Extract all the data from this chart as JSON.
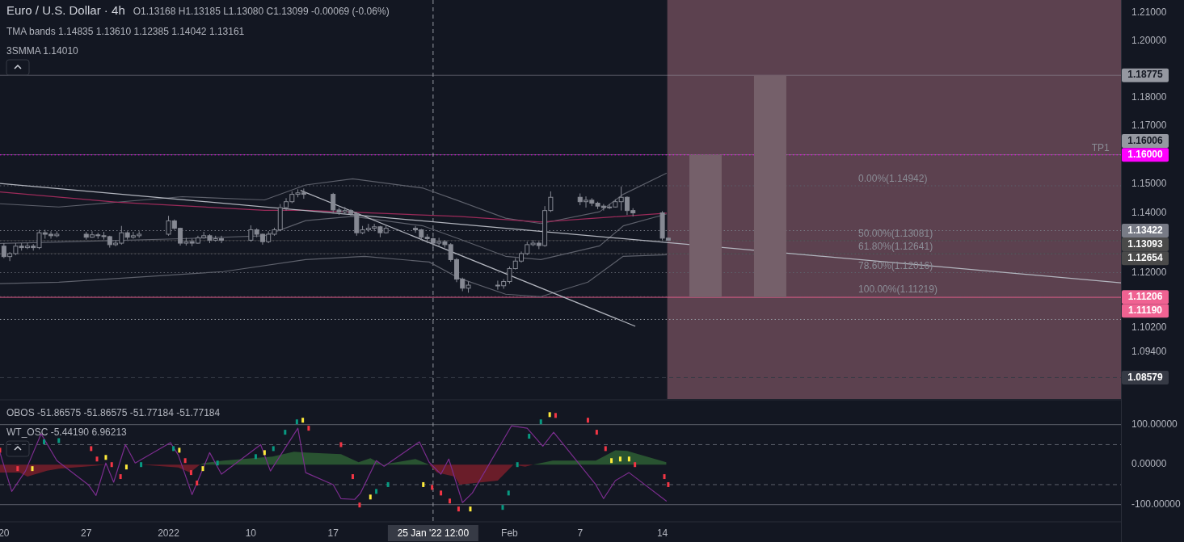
{
  "chart_data": [
    {
      "type": "candlestick",
      "title": "Euro / U.S. Dollar · 4h",
      "subtitle": "O1.13168 H1.13185 L1.13080 C1.13099 -0.00069 (-0.06%)",
      "color": "#868993",
      "log": true,
      "x": [
        "2021-12-20T00:00",
        "2021-12-20T12:00",
        "2021-12-21T00:00",
        "2021-12-21T12:00",
        "2021-12-22T00:00",
        "2021-12-22T12:00",
        "2021-12-23T00:00",
        "2021-12-23T12:00",
        "2021-12-24T00:00",
        "2021-12-24T12:00",
        "2021-12-27T00:00",
        "2021-12-27T12:00",
        "2021-12-28T00:00",
        "2021-12-28T12:00",
        "2021-12-29T00:00",
        "2021-12-29T12:00",
        "2021-12-30T00:00",
        "2021-12-30T12:00",
        "2021-12-31T00:00",
        "2021-12-31T12:00",
        "2022-01-03T00:00",
        "2022-01-03T12:00",
        "2022-01-04T00:00",
        "2022-01-04T12:00",
        "2022-01-05T00:00",
        "2022-01-05T12:00",
        "2022-01-06T00:00",
        "2022-01-06T12:00",
        "2022-01-07T00:00",
        "2022-01-07T12:00",
        "2022-01-10T00:00",
        "2022-01-10T12:00",
        "2022-01-11T00:00",
        "2022-01-11T12:00",
        "2022-01-12T00:00",
        "2022-01-12T12:00",
        "2022-01-13T00:00",
        "2022-01-13T12:00",
        "2022-01-14T00:00",
        "2022-01-14T12:00",
        "2022-01-17T00:00",
        "2022-01-17T12:00",
        "2022-01-18T00:00",
        "2022-01-18T12:00",
        "2022-01-19T00:00",
        "2022-01-19T12:00",
        "2022-01-20T00:00",
        "2022-01-20T12:00",
        "2022-01-21T00:00",
        "2022-01-21T12:00",
        "2022-01-24T00:00",
        "2022-01-24T12:00",
        "2022-01-25T00:00",
        "2022-01-25T12:00",
        "2022-01-26T00:00",
        "2022-01-26T12:00",
        "2022-01-27T00:00",
        "2022-01-27T12:00",
        "2022-01-28T00:00",
        "2022-01-28T12:00",
        "2022-01-31T00:00",
        "2022-01-31T12:00",
        "2022-02-01T00:00",
        "2022-02-01T12:00",
        "2022-02-02T00:00",
        "2022-02-02T12:00",
        "2022-02-03T00:00",
        "2022-02-03T12:00",
        "2022-02-04T00:00",
        "2022-02-04T12:00",
        "2022-02-07T00:00",
        "2022-02-07T12:00",
        "2022-02-08T00:00",
        "2022-02-08T12:00",
        "2022-02-09T00:00",
        "2022-02-09T12:00",
        "2022-02-10T00:00",
        "2022-02-10T12:00",
        "2022-02-11T00:00",
        "2022-02-11T12:00",
        "2022-02-14T00:00",
        "2022-02-14T12:00"
      ],
      "ohlc": [
        [
          1.129,
          1.13,
          1.125,
          1.1255
        ],
        [
          1.1255,
          1.127,
          1.124,
          1.1265
        ],
        [
          1.1265,
          1.13,
          1.126,
          1.129
        ],
        [
          1.129,
          1.13,
          1.1275,
          1.1285
        ],
        [
          1.1285,
          1.13,
          1.128,
          1.129
        ],
        [
          1.129,
          1.1297,
          1.1275,
          1.1285
        ],
        [
          1.1285,
          1.1345,
          1.128,
          1.1335
        ],
        [
          1.1335,
          1.1345,
          1.1315,
          1.133
        ],
        [
          1.133,
          1.134,
          1.1315,
          1.1325
        ],
        [
          1.1325,
          1.134,
          1.132,
          1.133
        ],
        [
          1.133,
          1.1338,
          1.1312,
          1.132
        ],
        [
          1.132,
          1.134,
          1.1318,
          1.1328
        ],
        [
          1.1328,
          1.1335,
          1.1315,
          1.1325
        ],
        [
          1.1325,
          1.1338,
          1.1312,
          1.1322
        ],
        [
          1.1322,
          1.1325,
          1.1285,
          1.1295
        ],
        [
          1.1295,
          1.131,
          1.129,
          1.13
        ],
        [
          1.13,
          1.1358,
          1.1295,
          1.1335
        ],
        [
          1.1335,
          1.134,
          1.1312,
          1.132
        ],
        [
          1.132,
          1.1338,
          1.1315,
          1.1325
        ],
        [
          1.1325,
          1.134,
          1.1318,
          1.133
        ],
        [
          1.133,
          1.1392,
          1.1325,
          1.1375
        ],
        [
          1.1375,
          1.138,
          1.1345,
          1.135
        ],
        [
          1.135,
          1.1352,
          1.1292,
          1.13
        ],
        [
          1.13,
          1.1318,
          1.1292,
          1.1305
        ],
        [
          1.1305,
          1.1315,
          1.129,
          1.13
        ],
        [
          1.13,
          1.1325,
          1.1298,
          1.1318
        ],
        [
          1.1318,
          1.1338,
          1.1315,
          1.1325
        ],
        [
          1.1325,
          1.133,
          1.13,
          1.131
        ],
        [
          1.131,
          1.1325,
          1.1305,
          1.1315
        ],
        [
          1.1315,
          1.1325,
          1.13,
          1.131
        ],
        [
          1.131,
          1.136,
          1.1305,
          1.1345
        ],
        [
          1.1345,
          1.135,
          1.132,
          1.133
        ],
        [
          1.133,
          1.1332,
          1.1295,
          1.1305
        ],
        [
          1.1305,
          1.134,
          1.13,
          1.133
        ],
        [
          1.133,
          1.1352,
          1.1325,
          1.1345
        ],
        [
          1.1345,
          1.1432,
          1.134,
          1.142
        ],
        [
          1.142,
          1.1452,
          1.141,
          1.144
        ],
        [
          1.144,
          1.1475,
          1.1435,
          1.1465
        ],
        [
          1.1465,
          1.1482,
          1.1455,
          1.147
        ],
        [
          1.147,
          1.1485,
          1.145,
          1.1465
        ],
        [
          1.1465,
          1.147,
          1.14,
          1.1412
        ],
        [
          1.1412,
          1.142,
          1.1395,
          1.1405
        ],
        [
          1.1405,
          1.1422,
          1.1398,
          1.141
        ],
        [
          1.141,
          1.1415,
          1.1392,
          1.14
        ],
        [
          1.14,
          1.1405,
          1.1325,
          1.1335
        ],
        [
          1.1335,
          1.1358,
          1.133,
          1.1345
        ],
        [
          1.1345,
          1.1365,
          1.1338,
          1.135
        ],
        [
          1.135,
          1.1365,
          1.134,
          1.1355
        ],
        [
          1.1355,
          1.1358,
          1.132,
          1.1335
        ],
        [
          1.1335,
          1.1362,
          1.1332,
          1.135
        ],
        [
          1.135,
          1.1358,
          1.1335,
          1.1345
        ],
        [
          1.1345,
          1.1348,
          1.131,
          1.132
        ],
        [
          1.132,
          1.133,
          1.13,
          1.1315
        ],
        [
          1.1315,
          1.132,
          1.1285,
          1.13
        ],
        [
          1.13,
          1.1318,
          1.1292,
          1.1305
        ],
        [
          1.1305,
          1.131,
          1.1285,
          1.1295
        ],
        [
          1.1295,
          1.13,
          1.1238,
          1.1245
        ],
        [
          1.1245,
          1.125,
          1.117,
          1.118
        ],
        [
          1.118,
          1.1185,
          1.114,
          1.115
        ],
        [
          1.115,
          1.1172,
          1.1135,
          1.116
        ],
        [
          1.116,
          1.1175,
          1.1145,
          1.1158
        ],
        [
          1.1158,
          1.118,
          1.1148,
          1.1172
        ],
        [
          1.1172,
          1.1222,
          1.1165,
          1.1215
        ],
        [
          1.1215,
          1.125,
          1.1212,
          1.124
        ],
        [
          1.124,
          1.1272,
          1.1235,
          1.1265
        ],
        [
          1.1265,
          1.1305,
          1.126,
          1.1295
        ],
        [
          1.1295,
          1.131,
          1.129,
          1.13
        ],
        [
          1.13,
          1.1306,
          1.128,
          1.1292
        ],
        [
          1.1292,
          1.1425,
          1.1288,
          1.141
        ],
        [
          1.141,
          1.1475,
          1.1405,
          1.1455
        ],
        [
          1.1455,
          1.1468,
          1.1428,
          1.144
        ],
        [
          1.144,
          1.1458,
          1.142,
          1.1445
        ],
        [
          1.1445,
          1.1452,
          1.1425,
          1.1435
        ],
        [
          1.1435,
          1.144,
          1.1415,
          1.1425
        ],
        [
          1.1425,
          1.1432,
          1.141,
          1.142
        ],
        [
          1.142,
          1.1432,
          1.1415,
          1.1422
        ],
        [
          1.1422,
          1.1448,
          1.142,
          1.144
        ],
        [
          1.144,
          1.1492,
          1.141,
          1.1455
        ],
        [
          1.1455,
          1.1458,
          1.1395,
          1.141
        ],
        [
          1.141,
          1.1418,
          1.139,
          1.1402
        ],
        [
          1.1402,
          1.1408,
          1.131,
          1.13168
        ],
        [
          1.13168,
          1.13185,
          1.1308,
          1.13099
        ]
      ],
      "series": [
        {
          "type": "line",
          "color": "#5d606b",
          "x": [
            "2021-12-19T16:00",
            "2021-12-24T16:00",
            "2022-01-04T04:00",
            "2022-01-11T04:00",
            "2022-01-14T16:00",
            "2022-01-18T16:00",
            "2022-01-24T16:00",
            "2022-01-27T16:00",
            "2022-01-31T16:00",
            "2022-02-03T16:00",
            "2022-02-08T16:00",
            "2022-02-10T16:00",
            "2022-02-14T08:00"
          ],
          "values": [
            1.1433,
            1.1422,
            1.1457,
            1.1446,
            1.1497,
            1.1518,
            1.1486,
            1.1443,
            1.1384,
            1.1366,
            1.1406,
            1.1465,
            1.1537
          ]
        },
        {
          "type": "line",
          "color": "#5d606b",
          "x": [
            "2021-12-19T16:00",
            "2021-12-24T16:00",
            "2022-01-04T04:00",
            "2022-01-11T04:00",
            "2022-01-14T16:00",
            "2022-01-18T16:00",
            "2022-01-24T16:00",
            "2022-01-27T16:00",
            "2022-01-31T16:00",
            "2022-02-03T16:00",
            "2022-02-08T16:00",
            "2022-02-10T16:00",
            "2022-02-14T08:00"
          ],
          "values": [
            1.1299,
            1.1304,
            1.1315,
            1.1325,
            1.1376,
            1.139,
            1.1358,
            1.1315,
            1.1256,
            1.1245,
            1.1291,
            1.1358,
            1.1398
          ]
        },
        {
          "type": "line",
          "color": "#5d606b",
          "x": [
            "2021-12-19T16:00",
            "2021-12-24T16:00",
            "2022-01-07T16:00",
            "2022-01-14T16:00",
            "2022-01-19T16:00",
            "2022-01-25T04:00",
            "2022-01-27T16:00",
            "2022-01-31T16:00",
            "2022-02-03T16:00",
            "2022-02-07T16:00",
            "2022-02-10T16:00",
            "2022-02-14T08:00"
          ],
          "values": [
            1.1165,
            1.117,
            1.1205,
            1.1245,
            1.1256,
            1.1237,
            1.1184,
            1.113,
            1.1122,
            1.117,
            1.1256,
            1.1261
          ]
        },
        {
          "type": "line",
          "color": "#9c2b5a",
          "x": [
            "2021-12-19T16:00",
            "2021-12-29T16:00",
            "2022-01-11T04:00",
            "2022-01-14T16:00",
            "2022-01-27T16:00",
            "2022-02-03T16:00",
            "2022-02-14T08:00"
          ],
          "values": [
            1.1473,
            1.1438,
            1.1411,
            1.1411,
            1.139,
            1.1371,
            1.1401
          ]
        },
        {
          "type": "line",
          "color": "#b2b5be",
          "x": [
            "2021-12-19T16:00",
            "2022-03-25T00:00"
          ],
          "values": [
            1.1502,
            1.1168
          ]
        },
        {
          "type": "line",
          "color": "#b2b5be",
          "x": [
            "2022-01-14T06:00",
            "2022-02-11T16:00"
          ],
          "values": [
            1.1478,
            1.1025
          ]
        },
        {
          "type": "bar",
          "color": "#75606a",
          "x": [
            "2022-02-17T16:00",
            "2022-02-23T04:00"
          ],
          "values": [
            0.048,
            0.0757
          ],
          "base": [
            1.11206,
            1.11206
          ]
        }
      ],
      "xlim": [
        "2021-12-19T16:00",
        "2022-03-25T00:00"
      ],
      "ylim": [
        1.0789,
        1.2146
      ],
      "yticks": [
        {
          "value": 1.21,
          "label": "1.21000"
        },
        {
          "value": 1.2,
          "label": "1.20000"
        },
        {
          "value": 1.18,
          "label": "1.18000"
        },
        {
          "value": 1.17,
          "label": "1.17000"
        },
        {
          "value": 1.15,
          "label": "1.15000"
        },
        {
          "value": 1.14,
          "label": "1.14000"
        },
        {
          "value": 1.12,
          "label": "1.12000"
        },
        {
          "value": 1.102,
          "label": "1.10200"
        },
        {
          "value": 1.094,
          "label": "1.09400"
        }
      ],
      "tick_labels": "y",
      "bands": [
        {
          "axis": "x",
          "from": "2022-02-14T10:00",
          "to": "2022-03-25T00:00",
          "color": "#5c414f"
        }
      ],
      "ref_lines": [
        {
          "axis": "y",
          "value": 1.14942,
          "line_style": "dotted",
          "color": "#5d606b"
        },
        {
          "axis": "y",
          "value": 1.13081,
          "line_style": "dotted",
          "color": "#5d606b"
        },
        {
          "axis": "y",
          "value": 1.12641,
          "line_style": "dotted",
          "color": "#5d606b"
        },
        {
          "axis": "y",
          "value": 1.12016,
          "line_style": "dotted",
          "color": "#5d606b"
        },
        {
          "axis": "y",
          "value": 1.11219,
          "line_style": "dotted",
          "color": "#4a4d57"
        },
        {
          "axis": "y",
          "value": 1.1047,
          "line_style": "dotted",
          "color": "#9598a1"
        },
        {
          "axis": "y",
          "value": 1.18775,
          "label": "1.18775",
          "line_style": "solid",
          "color": "#9598a1"
        },
        {
          "axis": "y",
          "value": 1.16006,
          "label": "1.16006",
          "line_style": "solid",
          "color": "#9598a1"
        },
        {
          "axis": "y",
          "value": 1.16,
          "label": "1.16000",
          "line_style": "dotted",
          "color": "#ff00ff"
        },
        {
          "axis": "y",
          "value": 1.13422,
          "label": "1.13422",
          "line_style": "dotted",
          "color": "#787b86"
        },
        {
          "axis": "y",
          "value": 1.13093,
          "label": "1.13093",
          "line_style": "solid",
          "color": "#4a4a4a"
        },
        {
          "axis": "y",
          "value": 1.12654,
          "label": "1.12654",
          "line_style": "solid",
          "color": "#4a4a4a"
        },
        {
          "axis": "y",
          "value": 1.11206,
          "label": "1.11206",
          "line_style": "solid",
          "color": "#f06292"
        },
        {
          "axis": "y",
          "value": 1.1119,
          "label": "1.11190",
          "line_style": "solid",
          "color": "#f06292"
        },
        {
          "axis": "y",
          "value": 1.08579,
          "label": "1.08579",
          "line_style": "dashed",
          "color": "#363a45"
        },
        {
          "axis": "x",
          "value": "2022-01-25T12:00",
          "line_style": "dashed",
          "color": "#9598a1"
        }
      ],
      "annotations": [
        "TMA bands 1.14835 1.13610 1.12385 1.14042 1.13161",
        "3SMMA 1.14010",
        {
          "text": "TP1",
          "x": "2022-03-22T12:00",
          "y": 1.16
        },
        {
          "text": "0.00%(1.14942)",
          "x": "2022-03-02T16:00",
          "y": 1.14942
        },
        {
          "text": "50.00%(1.13081)",
          "x": "2022-03-02T16:00",
          "y": 1.13081
        },
        {
          "text": "61.80%(1.12641)",
          "x": "2022-03-02T16:00",
          "y": 1.12641
        },
        {
          "text": "78.60%(1.12016)",
          "x": "2022-03-02T16:00",
          "y": 1.12016
        },
        {
          "text": "100.00%(1.11219)",
          "x": "2022-03-02T16:00",
          "y": 1.11219
        }
      ]
    },
    {
      "type": "line",
      "xlim": [
        "2021-12-19T16:00",
        "2022-03-25T00:00"
      ],
      "xticks": [
        {
          "value": "2021-12-20",
          "label": "20"
        },
        {
          "value": "2021-12-27",
          "label": "27"
        },
        {
          "value": "2022-01-03",
          "label": "2022"
        },
        {
          "value": "2022-01-10",
          "label": "10"
        },
        {
          "value": "2022-01-17",
          "label": "17"
        },
        {
          "value": "2022-02-01",
          "label": "Feb"
        },
        {
          "value": "2022-02-07",
          "label": "7"
        },
        {
          "value": "2022-02-14",
          "label": "14"
        }
      ],
      "ylim": [
        -141,
        160
      ],
      "yticks": [
        {
          "value": 100,
          "label": "100.00000"
        },
        {
          "value": 0,
          "label": "0.00000"
        },
        {
          "value": -100,
          "label": "-100.00000"
        }
      ],
      "series": [
        {
          "type": "area",
          "color": "#2e5e34",
          "x": [
            "2022-01-05T16:00",
            "2022-01-06T00:00",
            "2022-01-07T16:00",
            "2022-01-11T20:00",
            "2022-01-13T16:00",
            "2022-01-14T16:00",
            "2022-01-17T16:00",
            "2022-01-19T04:00",
            "2022-01-20T04:00",
            "2022-01-21T04:00",
            "2022-01-24T00:00",
            "2022-01-25T04:00",
            "2022-02-03T00:00",
            "2022-02-04T16:00",
            "2022-02-08T08:00",
            "2022-02-10T00:00",
            "2022-02-11T00:00",
            "2022-02-14T08:00"
          ],
          "values": [
            0,
            4,
            10,
            20,
            32,
            30,
            26,
            6,
            16,
            0,
            14,
            0,
            0,
            10,
            10,
            36,
            34,
            6
          ]
        },
        {
          "type": "area",
          "color": "#7a1f2a",
          "x": [
            "2021-12-19T16:00",
            "2021-12-21T08:00",
            "2021-12-22T00:00",
            "2021-12-23T16:00",
            "2021-12-24T16:00",
            "2021-12-27T16:00",
            "2021-12-28T16:00",
            "2021-12-31T16:00",
            "2022-01-03T20:00",
            "2022-01-04T20:00",
            "2022-01-05T16:00",
            "2022-01-25T04:00",
            "2022-01-25T20:00",
            "2022-01-27T08:00",
            "2022-01-27T18:00",
            "2022-01-31T00:00",
            "2022-02-01T08:00",
            "2022-02-02T08:00",
            "2022-02-03T00:00"
          ],
          "values": [
            -20,
            -20,
            -30,
            -15,
            -10,
            -3,
            0,
            0,
            -7,
            -20,
            0,
            0,
            -20,
            -30,
            -50,
            -40,
            0,
            -5,
            0
          ]
        },
        {
          "type": "line",
          "color": "#7b2d8e",
          "x": [
            "2021-12-19T16:00",
            "2021-12-20T16:00",
            "2021-12-21T20:00",
            "2021-12-23T04:00",
            "2021-12-24T12:00",
            "2021-12-27T04:00",
            "2021-12-27T20:00",
            "2021-12-28T16:00",
            "2021-12-29T08:00",
            "2021-12-30T08:00",
            "2021-12-31T04:00",
            "2022-01-03T04:00",
            "2022-01-03T20:00",
            "2022-01-05T00:00",
            "2022-01-06T12:00",
            "2022-01-07T12:00",
            "2022-01-10T20:00",
            "2022-01-11T16:00",
            "2022-01-14T00:00",
            "2022-01-14T16:00",
            "2022-01-17T00:00",
            "2022-01-17T16:00",
            "2022-01-18T20:00",
            "2022-01-19T08:00",
            "2022-01-20T16:00",
            "2022-01-21T08:00",
            "2022-01-24T08:00",
            "2022-01-25T04:00",
            "2022-01-26T04:00",
            "2022-01-26T20:00",
            "2022-01-28T00:00",
            "2022-01-28T20:00",
            "2022-02-01T04:00",
            "2022-02-02T12:00",
            "2022-02-03T20:00",
            "2022-02-04T18:00",
            "2022-02-08T08:00",
            "2022-02-09T00:00",
            "2022-02-10T00:00",
            "2022-02-11T04:00",
            "2022-02-14T08:00"
          ],
          "values": [
            30,
            -67,
            -16,
            77,
            10,
            -50,
            -77,
            4,
            -44,
            50,
            4,
            55,
            24,
            -75,
            30,
            -24,
            50,
            -16,
            91,
            -20,
            -50,
            -85,
            -87,
            -71,
            10,
            -4,
            57,
            6,
            -24,
            14,
            -95,
            -71,
            97,
            91,
            46,
            81,
            -50,
            -85,
            -40,
            -20,
            -91
          ]
        },
        {
          "type": "scatter",
          "marker": "square",
          "x": [
            "2021-12-19T16:00",
            "2021-12-21T04:00",
            "2021-12-22T10:00",
            "2021-12-23T10:00",
            "2021-12-24T16:00",
            "2021-12-27T10:00",
            "2021-12-27T22:00",
            "2021-12-28T16:00",
            "2021-12-29T04:00",
            "2021-12-29T22:00",
            "2021-12-30T10:00",
            "2021-12-31T16:00",
            "2022-01-03T10:00",
            "2022-01-03T22:00",
            "2022-01-04T10:00",
            "2022-01-04T22:00",
            "2022-01-05T10:00",
            "2022-01-05T22:00",
            "2022-01-07T04:00",
            "2022-01-10T10:00",
            "2022-01-11T04:00",
            "2022-01-11T22:00",
            "2022-01-12T22:00",
            "2022-01-13T22:00",
            "2022-01-14T10:00",
            "2022-01-14T22:00",
            "2022-01-17T16:00",
            "2022-01-18T16:00",
            "2022-01-19T06:00",
            "2022-01-20T04:00",
            "2022-01-20T16:00",
            "2022-01-21T16:00",
            "2022-01-24T16:00",
            "2022-01-25T10:00",
            "2022-01-26T04:00",
            "2022-01-26T22:00",
            "2022-01-27T16:00",
            "2022-01-28T16:00",
            "2022-01-31T10:00",
            "2022-01-31T22:00",
            "2022-02-01T16:00",
            "2022-02-02T16:00",
            "2022-02-03T16:00",
            "2022-02-04T10:00",
            "2022-02-04T22:00",
            "2022-02-07T16:00",
            "2022-02-08T10:00",
            "2022-02-09T04:00",
            "2022-02-09T16:00",
            "2022-02-10T10:00",
            "2022-02-11T04:00",
            "2022-02-11T16:00",
            "2022-02-14T04:00",
            "2022-02-14T12:00"
          ],
          "values": [
            36,
            -10,
            -10,
            57,
            60,
            40,
            14,
            18,
            0,
            -30,
            -6,
            0,
            40,
            36,
            10,
            -20,
            -46,
            -10,
            4,
            20,
            30,
            40,
            81,
            107,
            111,
            91,
            50,
            -30,
            -101,
            -81,
            -67,
            -50,
            -50,
            -57,
            -71,
            -91,
            -111,
            -111,
            -107,
            -71,
            0,
            71,
            107,
            125,
            123,
            111,
            81,
            40,
            10,
            14,
            14,
            0,
            -30,
            -50
          ],
          "colors": [
            "#f23645",
            "#f23645",
            "#ffeb3b",
            "#089981",
            "#089981",
            "#f23645",
            "#f23645",
            "#ffeb3b",
            "#f23645",
            "#f23645",
            "#ffeb3b",
            "#089981",
            "#089981",
            "#ffeb3b",
            "#f23645",
            "#f23645",
            "#f23645",
            "#ffeb3b",
            "#089981",
            "#089981",
            "#ffeb3b",
            "#089981",
            "#089981",
            "#089981",
            "#ffeb3b",
            "#f23645",
            "#f23645",
            "#f23645",
            "#f23645",
            "#ffeb3b",
            "#089981",
            "#089981",
            "#ffeb3b",
            "#f23645",
            "#f23645",
            "#f23645",
            "#f23645",
            "#ffeb3b",
            "#089981",
            "#089981",
            "#089981",
            "#089981",
            "#089981",
            "#ffeb3b",
            "#f23645",
            "#f23645",
            "#f23645",
            "#f23645",
            "#ffeb3b",
            "#ffeb3b",
            "#ffeb3b",
            "#f23645",
            "#f23645",
            "#f23645"
          ]
        }
      ],
      "ref_lines": [
        {
          "axis": "y",
          "value": 100,
          "line_style": "solid",
          "color": "#5d606b"
        },
        {
          "axis": "y",
          "value": 50,
          "line_style": "dashed",
          "color": "#5d606b"
        },
        {
          "axis": "y",
          "value": -50,
          "line_style": "dashed",
          "color": "#5d606b"
        },
        {
          "axis": "y",
          "value": -100,
          "line_style": "solid",
          "color": "#5d606b"
        },
        {
          "axis": "x",
          "value": "2022-01-25T12:00",
          "label": "25 Jan '22 12:00",
          "line_style": "dashed",
          "color": "#9598a1"
        }
      ],
      "annotations": [
        "OBOS -51.86575 -51.86575 -51.77184 -51.77184",
        "WT_OSC -5.44190 6.96213"
      ]
    }
  ]
}
